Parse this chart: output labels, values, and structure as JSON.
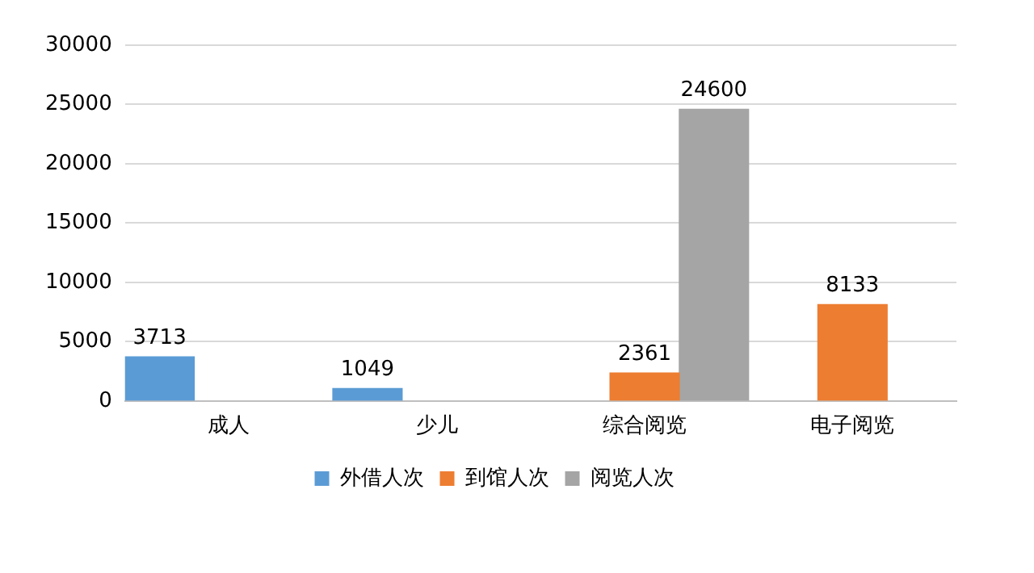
{
  "chart_data": {
    "type": "bar",
    "categories": [
      "成人",
      "少儿",
      "综合阅览",
      "电子阅览"
    ],
    "series": [
      {
        "name": "外借人次",
        "color": "#5b9bd5",
        "values": [
          3713,
          1049,
          null,
          null
        ]
      },
      {
        "name": "到馆人次",
        "color": "#ed7d31",
        "values": [
          null,
          null,
          2361,
          8133
        ]
      },
      {
        "name": "阅览人次",
        "color": "#a5a5a5",
        "values": [
          null,
          null,
          24600,
          null
        ]
      }
    ],
    "ylim": [
      0,
      30000
    ],
    "yticks": [
      0,
      5000,
      10000,
      15000,
      20000,
      25000,
      30000
    ],
    "grid": "y",
    "legend": "bottom",
    "data_labels": true
  }
}
